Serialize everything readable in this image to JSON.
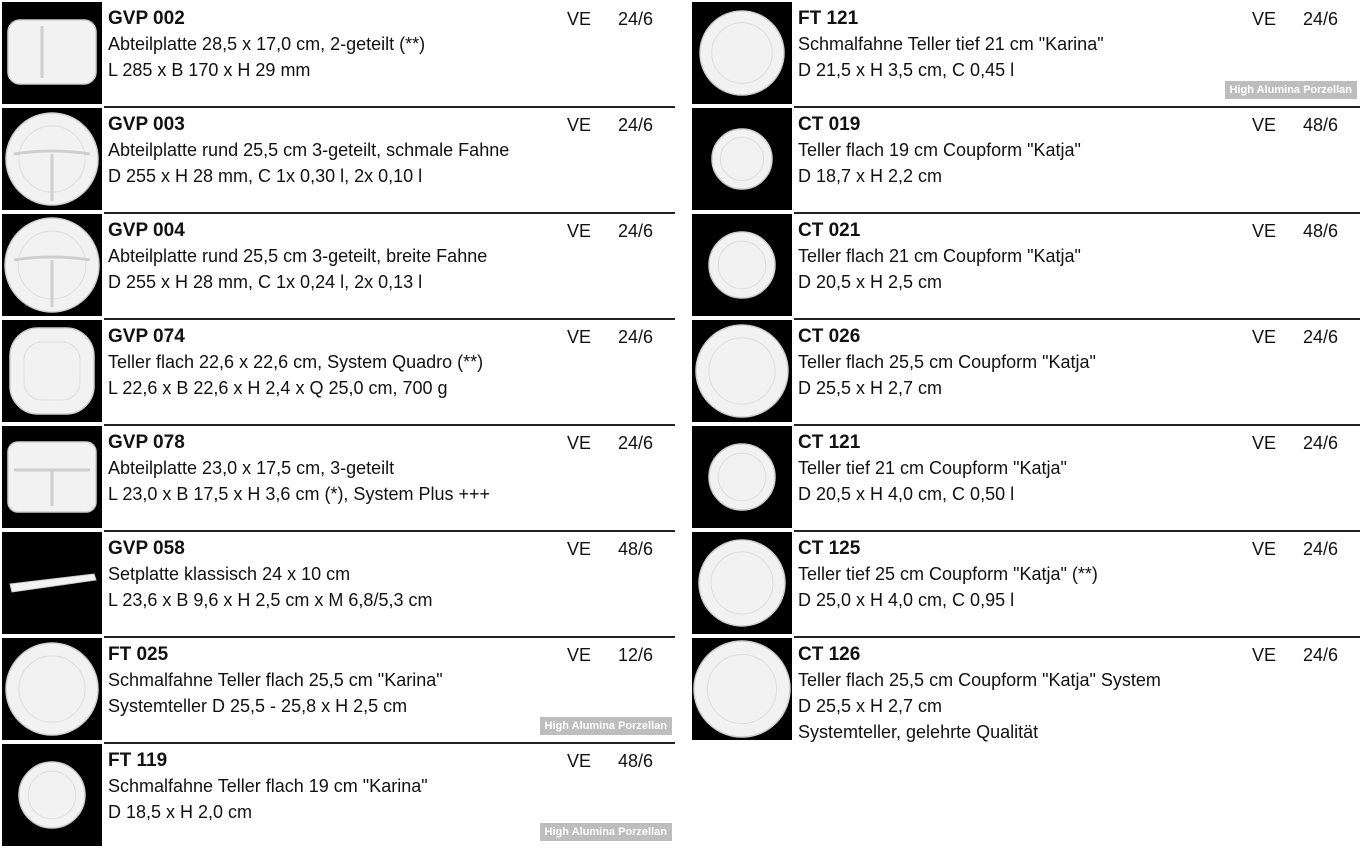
{
  "columns": [
    {
      "items": [
        {
          "code": "GVP 002",
          "ve_label": "VE",
          "pack": "24/6",
          "lines": [
            "Abteilplatte 28,5 x 17,0 cm, 2-geteilt (**)",
            "L 285 x B 170 x H 29 mm"
          ]
        },
        {
          "code": "GVP 003",
          "ve_label": "VE",
          "pack": "24/6",
          "lines": [
            "Abteilplatte rund 25,5 cm 3-geteilt, schmale Fahne",
            "D 255 x H 28 mm, C 1x 0,30 l, 2x 0,10 l"
          ]
        },
        {
          "code": "GVP 004",
          "ve_label": "VE",
          "pack": "24/6",
          "lines": [
            "Abteilplatte rund 25,5 cm 3-geteilt, breite Fahne",
            "D 255 x H 28 mm, C 1x 0,24 l, 2x 0,13 l"
          ]
        },
        {
          "code": "GVP 074",
          "ve_label": "VE",
          "pack": "24/6",
          "lines": [
            "Teller flach 22,6 x 22,6 cm, System Quadro (**)",
            "L 22,6 x B 22,6 x H 2,4 x Q 25,0 cm, 700 g"
          ]
        },
        {
          "code": "GVP 078",
          "ve_label": "VE",
          "pack": "24/6",
          "lines": [
            "Abteilplatte 23,0 x 17,5 cm, 3-geteilt",
            "L 23,0 x B 17,5 x H 3,6 cm (*), System Plus +++"
          ]
        },
        {
          "code": "GVP 058",
          "ve_label": "VE",
          "pack": "48/6",
          "lines": [
            "Setplatte klassisch 24 x 10 cm",
            "L 23,6 x B 9,6 x H 2,5 cm x M 6,8/5,3 cm"
          ]
        },
        {
          "code": "FT 025",
          "ve_label": "VE",
          "pack": "12/6",
          "lines": [
            "Schmalfahne Teller flach 25,5 cm \"Karina\"",
            "Systemteller D 25,5 - 25,8 x H 2,5 cm"
          ],
          "badge": "High Alumina Porzellan"
        },
        {
          "code": "FT 119",
          "ve_label": "VE",
          "pack": "48/6",
          "lines": [
            "Schmalfahne Teller flach 19 cm \"Karina\"",
            "D 18,5 x H 2,0 cm"
          ],
          "badge": "High Alumina Porzellan"
        }
      ]
    },
    {
      "items": [
        {
          "code": "FT 121",
          "ve_label": "VE",
          "pack": "24/6",
          "lines": [
            "Schmalfahne Teller tief 21 cm \"Karina\"",
            "D 21,5 x H 3,5 cm, C 0,45 l"
          ],
          "badge": "High Alumina Porzellan"
        },
        {
          "code": "CT 019",
          "ve_label": "VE",
          "pack": "48/6",
          "lines": [
            "Teller flach 19 cm Coupform \"Katja\"",
            "D 18,7 x H 2,2 cm"
          ]
        },
        {
          "code": "CT 021",
          "ve_label": "VE",
          "pack": "48/6",
          "lines": [
            "Teller flach 21 cm Coupform \"Katja\"",
            "D 20,5 x H 2,5 cm"
          ]
        },
        {
          "code": "CT 026",
          "ve_label": "VE",
          "pack": "24/6",
          "lines": [
            "Teller flach 25,5 cm Coupform \"Katja\"",
            "D 25,5 x H 2,7 cm"
          ]
        },
        {
          "code": "CT 121",
          "ve_label": "VE",
          "pack": "24/6",
          "lines": [
            "Teller tief 21 cm Coupform \"Katja\"",
            "D 20,5 x H 4,0 cm, C 0,50 l"
          ]
        },
        {
          "code": "CT 125",
          "ve_label": "VE",
          "pack": "24/6",
          "lines": [
            "Teller tief 25 cm Coupform \"Katja\" (**)",
            "D 25,0 x H 4,0 cm, C 0,95 l"
          ]
        },
        {
          "code": "CT 126",
          "ve_label": "VE",
          "pack": "24/6",
          "lines": [
            "Teller flach 25,5 cm Coupform \"Katja\" System",
            "D 25,5 x H 2,7 cm",
            "Systemteller, gelehrte Qualität"
          ]
        }
      ]
    }
  ]
}
